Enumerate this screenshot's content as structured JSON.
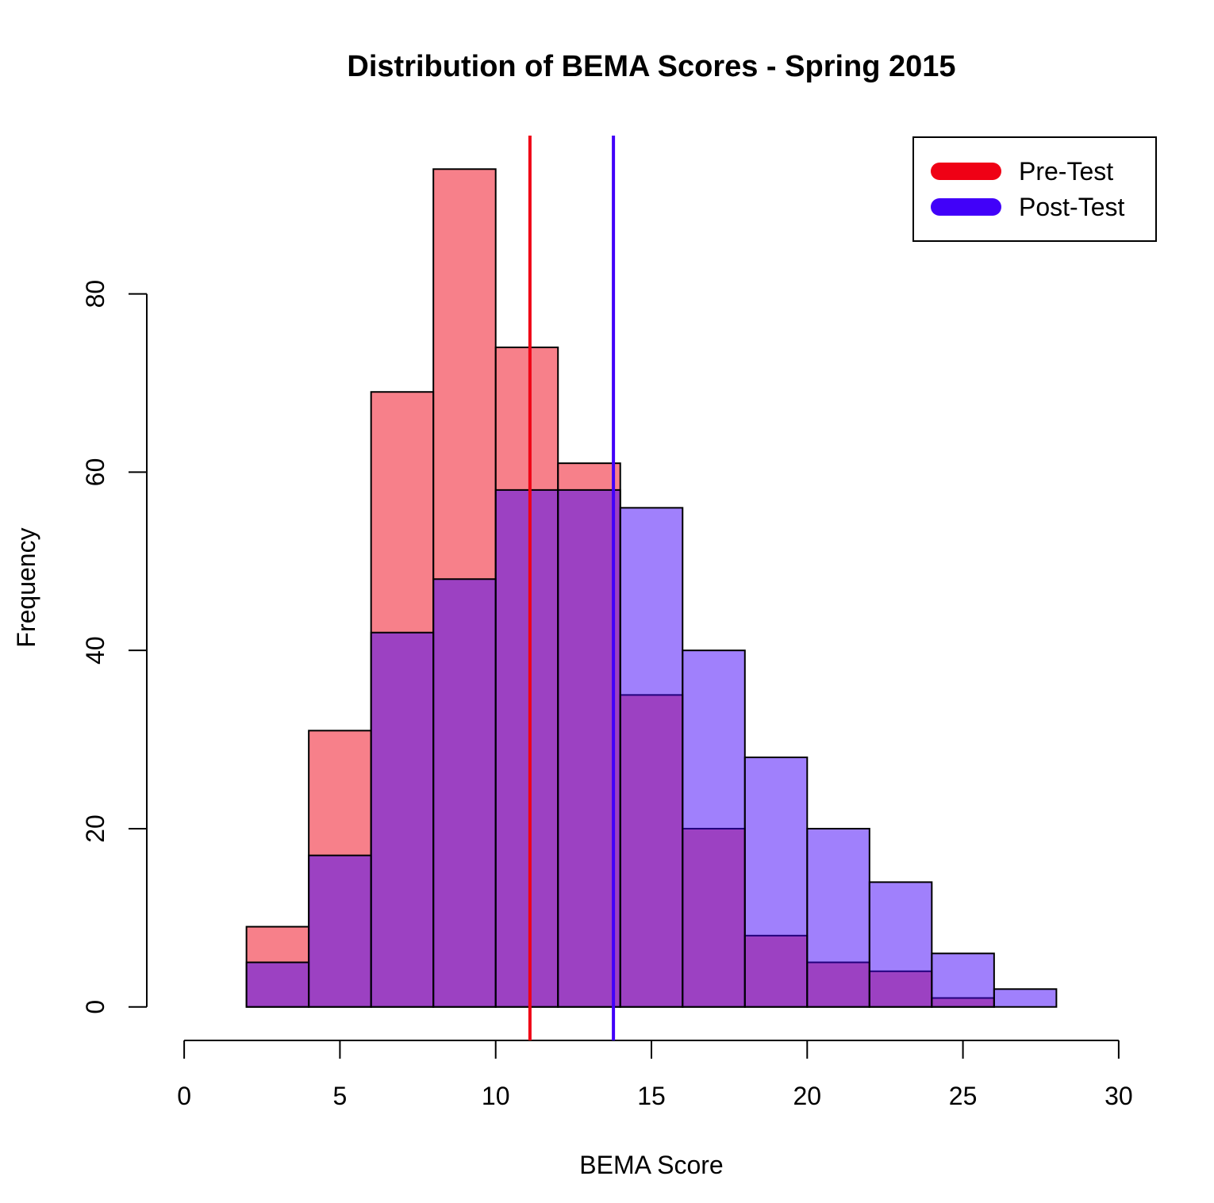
{
  "chart_data": {
    "type": "histogram",
    "title": "Distribution of BEMA Scores - Spring 2015",
    "xlabel": "BEMA Score",
    "ylabel": "Frequency",
    "bins": [
      2,
      4,
      6,
      8,
      10,
      12,
      14,
      16,
      18,
      20,
      22,
      24,
      26,
      28
    ],
    "series": [
      {
        "name": "Pre-Test",
        "color": "#EF0115",
        "values": [
          9,
          31,
          69,
          94,
          74,
          61,
          35,
          20,
          8,
          5,
          4,
          1,
          0
        ],
        "mean": 11.1
      },
      {
        "name": "Post-Test",
        "color": "#4101F9",
        "values": [
          5,
          17,
          42,
          48,
          58,
          58,
          56,
          40,
          28,
          20,
          14,
          6,
          2
        ],
        "mean": 13.78
      }
    ],
    "fill_opacity": 0.5,
    "xlim": [
      -1.2,
      31.2
    ],
    "xticks": [
      0,
      5,
      10,
      15,
      20,
      25,
      30
    ],
    "ylim": [
      -3.76,
      97.76
    ],
    "yticks": [
      0,
      20,
      40,
      60,
      80
    ],
    "legend": "topright",
    "grid": false
  }
}
